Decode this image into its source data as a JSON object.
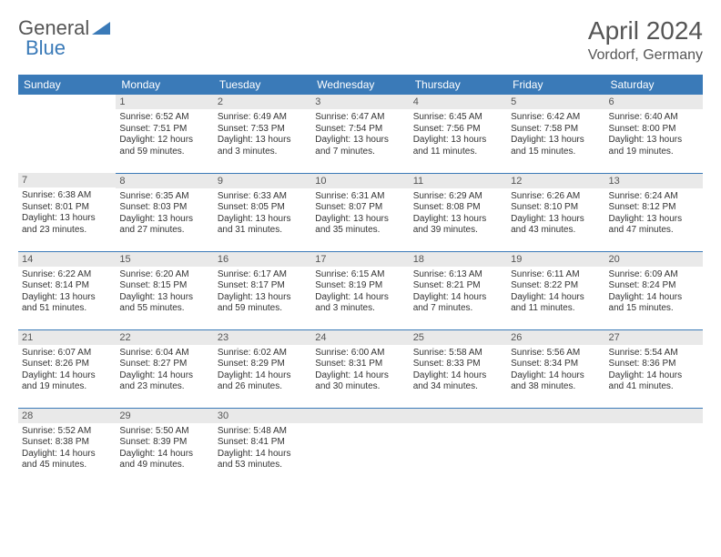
{
  "logo": {
    "text1": "General",
    "text2": "Blue",
    "accent_color": "#3a7ab8"
  },
  "title": "April 2024",
  "location": "Vordorf, Germany",
  "header_bg": "#3a7ab8",
  "daybar_bg": "#e9e9e9",
  "daybar_bg_alt": "#dedede",
  "border_color": "#3a7ab8",
  "font_family": "Arial",
  "day_headers": [
    "Sunday",
    "Monday",
    "Tuesday",
    "Wednesday",
    "Thursday",
    "Friday",
    "Saturday"
  ],
  "weeks": [
    {
      "cells": [
        {
          "blank": true
        },
        {
          "num": "1",
          "sunrise": "Sunrise: 6:52 AM",
          "sunset": "Sunset: 7:51 PM",
          "daylight": "Daylight: 12 hours and 59 minutes."
        },
        {
          "num": "2",
          "sunrise": "Sunrise: 6:49 AM",
          "sunset": "Sunset: 7:53 PM",
          "daylight": "Daylight: 13 hours and 3 minutes."
        },
        {
          "num": "3",
          "sunrise": "Sunrise: 6:47 AM",
          "sunset": "Sunset: 7:54 PM",
          "daylight": "Daylight: 13 hours and 7 minutes."
        },
        {
          "num": "4",
          "sunrise": "Sunrise: 6:45 AM",
          "sunset": "Sunset: 7:56 PM",
          "daylight": "Daylight: 13 hours and 11 minutes."
        },
        {
          "num": "5",
          "sunrise": "Sunrise: 6:42 AM",
          "sunset": "Sunset: 7:58 PM",
          "daylight": "Daylight: 13 hours and 15 minutes."
        },
        {
          "num": "6",
          "sunrise": "Sunrise: 6:40 AM",
          "sunset": "Sunset: 8:00 PM",
          "daylight": "Daylight: 13 hours and 19 minutes."
        }
      ]
    },
    {
      "cells": [
        {
          "num": "7",
          "sunrise": "Sunrise: 6:38 AM",
          "sunset": "Sunset: 8:01 PM",
          "daylight": "Daylight: 13 hours and 23 minutes."
        },
        {
          "num": "8",
          "sunrise": "Sunrise: 6:35 AM",
          "sunset": "Sunset: 8:03 PM",
          "daylight": "Daylight: 13 hours and 27 minutes."
        },
        {
          "num": "9",
          "sunrise": "Sunrise: 6:33 AM",
          "sunset": "Sunset: 8:05 PM",
          "daylight": "Daylight: 13 hours and 31 minutes."
        },
        {
          "num": "10",
          "sunrise": "Sunrise: 6:31 AM",
          "sunset": "Sunset: 8:07 PM",
          "daylight": "Daylight: 13 hours and 35 minutes."
        },
        {
          "num": "11",
          "sunrise": "Sunrise: 6:29 AM",
          "sunset": "Sunset: 8:08 PM",
          "daylight": "Daylight: 13 hours and 39 minutes."
        },
        {
          "num": "12",
          "sunrise": "Sunrise: 6:26 AM",
          "sunset": "Sunset: 8:10 PM",
          "daylight": "Daylight: 13 hours and 43 minutes."
        },
        {
          "num": "13",
          "sunrise": "Sunrise: 6:24 AM",
          "sunset": "Sunset: 8:12 PM",
          "daylight": "Daylight: 13 hours and 47 minutes."
        }
      ]
    },
    {
      "cells": [
        {
          "num": "14",
          "sunrise": "Sunrise: 6:22 AM",
          "sunset": "Sunset: 8:14 PM",
          "daylight": "Daylight: 13 hours and 51 minutes."
        },
        {
          "num": "15",
          "sunrise": "Sunrise: 6:20 AM",
          "sunset": "Sunset: 8:15 PM",
          "daylight": "Daylight: 13 hours and 55 minutes."
        },
        {
          "num": "16",
          "sunrise": "Sunrise: 6:17 AM",
          "sunset": "Sunset: 8:17 PM",
          "daylight": "Daylight: 13 hours and 59 minutes."
        },
        {
          "num": "17",
          "sunrise": "Sunrise: 6:15 AM",
          "sunset": "Sunset: 8:19 PM",
          "daylight": "Daylight: 14 hours and 3 minutes."
        },
        {
          "num": "18",
          "sunrise": "Sunrise: 6:13 AM",
          "sunset": "Sunset: 8:21 PM",
          "daylight": "Daylight: 14 hours and 7 minutes."
        },
        {
          "num": "19",
          "sunrise": "Sunrise: 6:11 AM",
          "sunset": "Sunset: 8:22 PM",
          "daylight": "Daylight: 14 hours and 11 minutes."
        },
        {
          "num": "20",
          "sunrise": "Sunrise: 6:09 AM",
          "sunset": "Sunset: 8:24 PM",
          "daylight": "Daylight: 14 hours and 15 minutes."
        }
      ]
    },
    {
      "cells": [
        {
          "num": "21",
          "sunrise": "Sunrise: 6:07 AM",
          "sunset": "Sunset: 8:26 PM",
          "daylight": "Daylight: 14 hours and 19 minutes."
        },
        {
          "num": "22",
          "sunrise": "Sunrise: 6:04 AM",
          "sunset": "Sunset: 8:27 PM",
          "daylight": "Daylight: 14 hours and 23 minutes."
        },
        {
          "num": "23",
          "sunrise": "Sunrise: 6:02 AM",
          "sunset": "Sunset: 8:29 PM",
          "daylight": "Daylight: 14 hours and 26 minutes."
        },
        {
          "num": "24",
          "sunrise": "Sunrise: 6:00 AM",
          "sunset": "Sunset: 8:31 PM",
          "daylight": "Daylight: 14 hours and 30 minutes."
        },
        {
          "num": "25",
          "sunrise": "Sunrise: 5:58 AM",
          "sunset": "Sunset: 8:33 PM",
          "daylight": "Daylight: 14 hours and 34 minutes."
        },
        {
          "num": "26",
          "sunrise": "Sunrise: 5:56 AM",
          "sunset": "Sunset: 8:34 PM",
          "daylight": "Daylight: 14 hours and 38 minutes."
        },
        {
          "num": "27",
          "sunrise": "Sunrise: 5:54 AM",
          "sunset": "Sunset: 8:36 PM",
          "daylight": "Daylight: 14 hours and 41 minutes."
        }
      ]
    },
    {
      "cells": [
        {
          "num": "28",
          "sunrise": "Sunrise: 5:52 AM",
          "sunset": "Sunset: 8:38 PM",
          "daylight": "Daylight: 14 hours and 45 minutes."
        },
        {
          "num": "29",
          "sunrise": "Sunrise: 5:50 AM",
          "sunset": "Sunset: 8:39 PM",
          "daylight": "Daylight: 14 hours and 49 minutes."
        },
        {
          "num": "30",
          "sunrise": "Sunrise: 5:48 AM",
          "sunset": "Sunset: 8:41 PM",
          "daylight": "Daylight: 14 hours and 53 minutes."
        },
        {
          "blank": true
        },
        {
          "blank": true
        },
        {
          "blank": true
        },
        {
          "blank": true
        }
      ]
    }
  ]
}
